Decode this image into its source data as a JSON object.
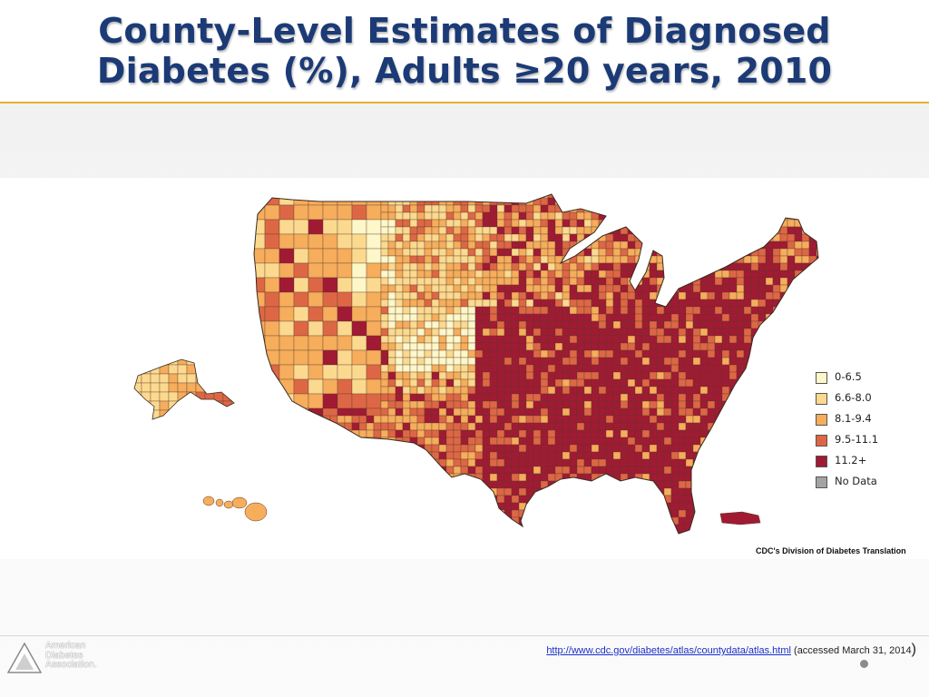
{
  "slide": {
    "title_line1": "County-Level Estimates of Diagnosed",
    "title_line2": "Diabetes (%), Adults ≥20 years, 2010"
  },
  "map": {
    "legend": [
      {
        "label": "0-6.5",
        "color": "#fdf7c9"
      },
      {
        "label": "6.6-8.0",
        "color": "#fbd98f"
      },
      {
        "label": "8.1-9.4",
        "color": "#f6ad5c"
      },
      {
        "label": "9.5-11.1",
        "color": "#dd6745"
      },
      {
        "label": "11.2+",
        "color": "#a11a33"
      },
      {
        "label": "No Data",
        "color": "#a3a3a3"
      }
    ],
    "credit": "CDC's Division of Diabetes Translation"
  },
  "footer": {
    "logo_lines": [
      "American",
      "Diabetes",
      "Association."
    ],
    "source_url": "http://www.cdc.gov/diabetes/atlas/countydata/atlas.html",
    "source_note": "(accessed March 31, 2014",
    "close_paren": ")"
  },
  "colors": {
    "title": "#1b3a76",
    "accent_line": "#e3b52a",
    "county_border": "#5a3a2a",
    "state_border": "#3a2a20"
  }
}
